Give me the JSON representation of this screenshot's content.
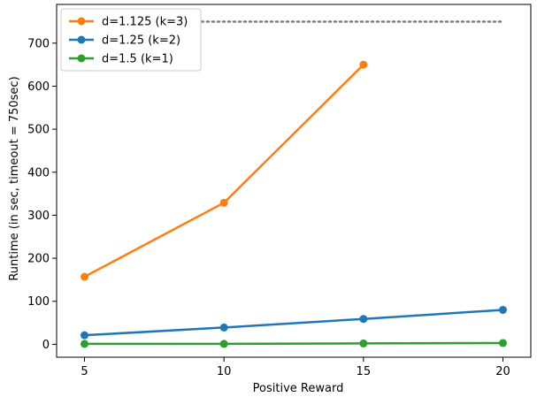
{
  "chart_data": {
    "type": "line",
    "title": "",
    "xlabel": "Positive Reward",
    "ylabel": "Runtime (in sec, timeout = 750sec)",
    "xlim": [
      4,
      21
    ],
    "ylim": [
      -30,
      790
    ],
    "xticks": [
      5,
      10,
      15,
      20
    ],
    "yticks": [
      0,
      100,
      200,
      300,
      400,
      500,
      600,
      700
    ],
    "grid": false,
    "legend_position": "top-left",
    "timeout_line": {
      "y": 750,
      "x_start": 9.2,
      "x_end": 20,
      "color": "#808080",
      "style": "dotted"
    },
    "series": [
      {
        "name": "d=1.125 (k=3)",
        "color": "#ff7f0e",
        "x": [
          5,
          10,
          15
        ],
        "y": [
          157,
          329,
          650
        ]
      },
      {
        "name": "d=1.25 (k=2)",
        "color": "#1f77b4",
        "x": [
          5,
          10,
          15,
          20
        ],
        "y": [
          21,
          39,
          59,
          80
        ]
      },
      {
        "name": "d=1.5 (k=1)",
        "color": "#2ca02c",
        "x": [
          5,
          10,
          15,
          20
        ],
        "y": [
          1,
          1,
          2,
          3
        ]
      }
    ]
  }
}
